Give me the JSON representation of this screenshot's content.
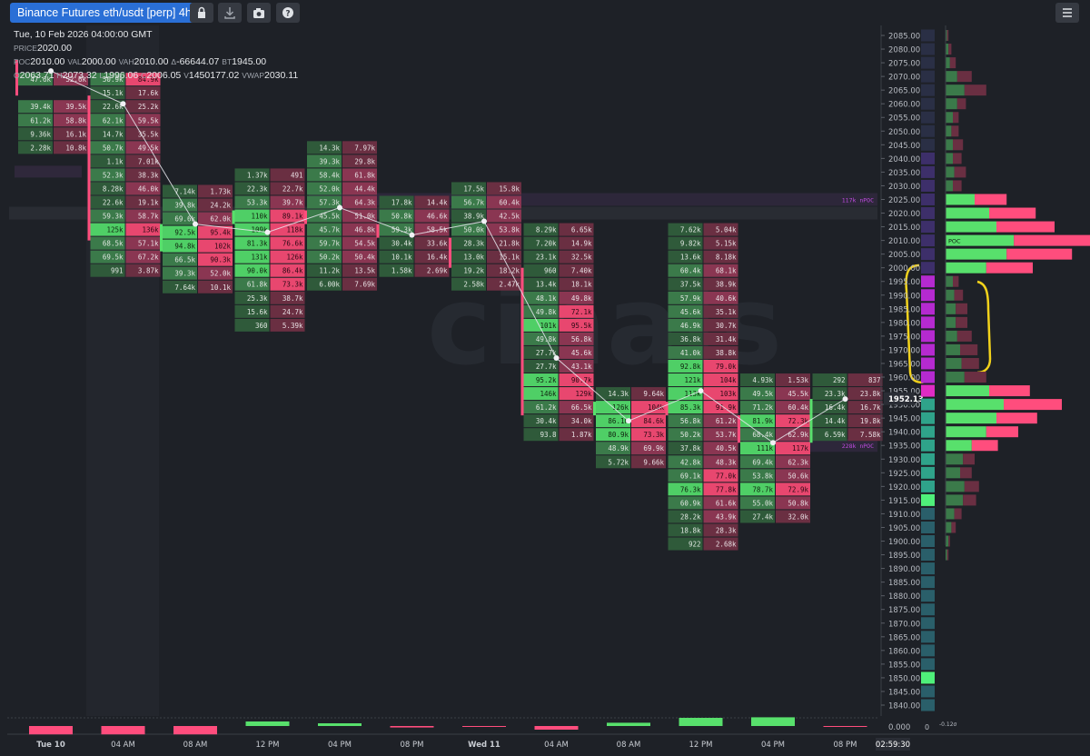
{
  "toolbar": {
    "title": "Binance Futures eth/usdt [perp] 4h",
    "icons": [
      "lock-icon",
      "download-icon",
      "camera-icon",
      "help-icon",
      "menu-icon"
    ]
  },
  "legend": {
    "datetime": "Tue, 10 Feb 2026 04:00:00 GMT",
    "price_label": "PRICE",
    "price": "2020.00",
    "poc_label": "POC",
    "poc": "2010.00",
    "val_label": "VAL",
    "val": "2000.00",
    "vah_label": "VAH",
    "vah": "2010.00",
    "delta_label": "Δ",
    "delta": "-66644.07",
    "bt_label": "BT",
    "bt": "1945.00",
    "o_label": "O",
    "o": "2063.71",
    "h_label": "H",
    "h": "2073.32",
    "l_label": "L",
    "l": "1996.06",
    "c_label": "C",
    "c": "2006.05",
    "v_label": "V",
    "v": "1450177.02",
    "vwap_label": "VWAP",
    "vwap": "2030.11"
  },
  "colors": {
    "background": "#1e2127",
    "buy": "#58e06c",
    "sell": "#ff4d7d",
    "buy_cell_dark": "#2f5a3a",
    "sell_cell_dark": "#6a2f42",
    "npoc": "#c04be0",
    "annotation": "#f2d21b"
  },
  "price_axis": {
    "current_price": "1952.13",
    "volume_zero": "0.000",
    "profile_tick": "0",
    "profile_scale": "-0.12σ"
  },
  "time_axis": {
    "current_time": "02:59:30"
  },
  "npoc_labels": [
    {
      "text": "117k nPOC",
      "price": 2025
    },
    {
      "text": "228k nPOC",
      "price": 1935
    }
  ],
  "chart_data": {
    "type": "footprint",
    "title": "Binance Futures eth/usdt [perp] 4h",
    "price_ticks": [
      2085,
      2080,
      2075,
      2070,
      2065,
      2060,
      2055,
      2050,
      2045,
      2040,
      2035,
      2030,
      2025,
      2020,
      2015,
      2010,
      2005,
      2000,
      1995,
      1990,
      1985,
      1980,
      1975,
      1970,
      1965,
      1960,
      1955,
      1950,
      1945,
      1940,
      1935,
      1930,
      1925,
      1920,
      1915,
      1910,
      1905,
      1900,
      1895,
      1890,
      1885,
      1880,
      1875,
      1870,
      1865,
      1860,
      1855,
      1850,
      1845,
      1840
    ],
    "x_labels": [
      "Tue 10",
      "04 AM",
      "08 AM",
      "12 PM",
      "04 PM",
      "08 PM",
      "Wed 11",
      "04 AM",
      "08 AM",
      "12 PM",
      "04 PM",
      "08 PM"
    ],
    "bars": [
      {
        "label": "Tue 10 00:00",
        "poc": 2075,
        "vwap": 2072,
        "cells": [
          [
            "47.6k",
            "52.6k"
          ],
          [
            "",
            ""
          ],
          [
            "39.4k",
            "39.5k"
          ],
          [
            "61.2k",
            "58.8k"
          ],
          [
            "9.36k",
            "16.1k"
          ],
          [
            "2.28k",
            "10.8k"
          ]
        ],
        "top": 2069,
        "open": 2076,
        "close": 2063
      },
      {
        "label": "04 AM",
        "poc": 2015,
        "vwap": 2060,
        "top": 2069,
        "cells": [
          [
            "50.9k",
            "84.9k"
          ],
          [
            "15.1k",
            "17.6k"
          ],
          [
            "22.6k",
            "25.2k"
          ],
          [
            "62.1k",
            "59.5k"
          ],
          [
            "14.7k",
            "35.5k"
          ],
          [
            "50.7k",
            "49.5k"
          ],
          [
            "1.1k",
            "7.01k"
          ],
          [
            "52.3k",
            "38.3k"
          ],
          [
            "8.28k",
            "46.0k"
          ],
          [
            "22.6k",
            "19.1k"
          ],
          [
            "59.3k",
            "58.7k"
          ],
          [
            "125k",
            "136k"
          ],
          [
            "68.5k",
            "57.1k"
          ],
          [
            "69.5k",
            "67.2k"
          ],
          [
            "991",
            "3.87k"
          ]
        ],
        "open": 2063,
        "close": 2010
      },
      {
        "label": "08 AM",
        "poc": 2015,
        "vwap": 2016,
        "top": 2028,
        "cells": [
          [
            "7.14k",
            "1.73k"
          ],
          [
            "39.8k",
            "24.2k"
          ],
          [
            "69.6k",
            "62.0k"
          ],
          [
            "92.5k",
            "95.4k"
          ],
          [
            "94.8k",
            "102k"
          ],
          [
            "66.5k",
            "90.3k"
          ],
          [
            "39.3k",
            "52.0k"
          ],
          [
            "7.64k",
            "10.1k"
          ]
        ],
        "open": 2006,
        "close": 2016
      },
      {
        "label": "12 PM",
        "poc": 2010,
        "vwap": 2013,
        "top": 2034,
        "cells": [
          [
            "1.37k",
            "491"
          ],
          [
            "22.3k",
            "22.7k"
          ],
          [
            "53.3k",
            "39.7k"
          ],
          [
            "110k",
            "89.1k"
          ],
          [
            "109k",
            "118k"
          ],
          [
            "81.3k",
            "76.6k"
          ],
          [
            "131k",
            "126k"
          ],
          [
            "90.0k",
            "86.4k"
          ],
          [
            "61.8k",
            "73.3k"
          ],
          [
            "25.3k",
            "38.7k"
          ],
          [
            "15.6k",
            "24.7k"
          ],
          [
            "360",
            "5.39k"
          ]
        ],
        "open": 2016,
        "close": 2021
      },
      {
        "label": "04 PM",
        "poc": 2020,
        "vwap": 2022,
        "top": 2044,
        "cells": [
          [
            "14.3k",
            "7.97k"
          ],
          [
            "39.3k",
            "29.8k"
          ],
          [
            "58.4k",
            "61.8k"
          ],
          [
            "52.0k",
            "44.4k"
          ],
          [
            "57.3k",
            "64.3k"
          ],
          [
            "45.5k",
            "51.0k"
          ],
          [
            "45.7k",
            "46.8k"
          ],
          [
            "59.7k",
            "54.5k"
          ],
          [
            "50.2k",
            "50.4k"
          ],
          [
            "11.2k",
            "13.5k"
          ],
          [
            "6.00k",
            "7.69k"
          ]
        ],
        "open": 2021,
        "close": 2016
      },
      {
        "label": "08 PM",
        "poc": 2015,
        "vwap": 2012,
        "top": 2024,
        "cells": [
          [
            "17.8k",
            "14.4k"
          ],
          [
            "50.8k",
            "46.6k"
          ],
          [
            "59.3k",
            "58.5k"
          ],
          [
            "30.4k",
            "33.6k"
          ],
          [
            "10.1k",
            "16.4k"
          ],
          [
            "1.58k",
            "2.69k"
          ]
        ],
        "open": 2016,
        "close": 2011
      },
      {
        "label": "Wed 11 00:00",
        "poc": 2025,
        "vwap": 2017,
        "top": 2029,
        "cells": [
          [
            "17.5k",
            "15.8k"
          ],
          [
            "56.7k",
            "60.4k"
          ],
          [
            "38.9k",
            "42.5k"
          ],
          [
            "50.0k",
            "53.8k"
          ],
          [
            "28.3k",
            "21.8k"
          ],
          [
            "13.0k",
            "15.1k"
          ],
          [
            "19.2k",
            "18.2k"
          ],
          [
            "2.58k",
            "2.47k"
          ]
        ],
        "open": 2011,
        "close": 2000
      },
      {
        "label": "04 AM",
        "poc": 1950,
        "vwap": 1967,
        "top": 2014,
        "cells": [
          [
            "8.29k",
            "6.65k"
          ],
          [
            "7.20k",
            "14.9k"
          ],
          [
            "23.1k",
            "32.5k"
          ],
          [
            "960",
            "7.40k"
          ],
          [
            "13.4k",
            "18.1k"
          ],
          [
            "48.1k",
            "49.8k"
          ],
          [
            "49.8k",
            "72.1k"
          ],
          [
            "101k",
            "95.5k"
          ],
          [
            "49.8k",
            "56.8k"
          ],
          [
            "27.7k",
            "45.6k"
          ],
          [
            "27.7k",
            "43.1k"
          ],
          [
            "95.2k",
            "90.7k"
          ],
          [
            "146k",
            "129k"
          ],
          [
            "61.2k",
            "66.5k"
          ],
          [
            "30.4k",
            "34.0k"
          ],
          [
            "93.8",
            "1.87k"
          ]
        ],
        "open": 2000,
        "close": 1946
      },
      {
        "label": "08 AM",
        "poc": 1950,
        "vwap": 1944,
        "top": 1954,
        "cells": [
          [
            "14.3k",
            "9.64k"
          ],
          [
            "126k",
            "104k"
          ],
          [
            "86.1k",
            "84.6k"
          ],
          [
            "80.9k",
            "73.3k"
          ],
          [
            "48.9k",
            "69.9k"
          ],
          [
            "5.72k",
            "9.66k"
          ]
        ],
        "open": 1946,
        "close": 1951
      },
      {
        "label": "12 PM",
        "poc": 1960,
        "vwap": 1955,
        "top": 2014,
        "cells": [
          [
            "7.62k",
            "5.04k"
          ],
          [
            "9.82k",
            "5.15k"
          ],
          [
            "13.6k",
            "8.18k"
          ],
          [
            "60.4k",
            "68.1k"
          ],
          [
            "37.5k",
            "38.9k"
          ],
          [
            "57.9k",
            "40.6k"
          ],
          [
            "45.6k",
            "35.1k"
          ],
          [
            "46.9k",
            "30.7k"
          ],
          [
            "36.8k",
            "31.4k"
          ],
          [
            "41.0k",
            "38.8k"
          ],
          [
            "92.8k",
            "79.0k"
          ],
          [
            "121k",
            "104k"
          ],
          [
            "113k",
            "103k"
          ],
          [
            "85.3k",
            "91.9k"
          ],
          [
            "56.8k",
            "61.2k"
          ],
          [
            "50.2k",
            "53.7k"
          ],
          [
            "37.8k",
            "40.5k"
          ],
          [
            "42.8k",
            "48.3k"
          ],
          [
            "69.1k",
            "77.0k"
          ],
          [
            "76.3k",
            "77.8k"
          ],
          [
            "60.9k",
            "61.6k"
          ],
          [
            "28.2k",
            "43.9k"
          ],
          [
            "18.8k",
            "28.3k"
          ],
          [
            "922",
            "2.68k"
          ]
        ],
        "open": 1951,
        "close": 1946
      },
      {
        "label": "04 PM",
        "poc": 1935,
        "vwap": 1936,
        "top": 1959,
        "cells": [
          [
            "4.93k",
            "1.53k"
          ],
          [
            "49.5k",
            "45.5k"
          ],
          [
            "71.2k",
            "60.4k"
          ],
          [
            "81.9k",
            "72.3k"
          ],
          [
            "68.4k",
            "62.9k"
          ],
          [
            "111k",
            "117k"
          ],
          [
            "69.4k",
            "62.3k"
          ],
          [
            "53.8k",
            "50.6k"
          ],
          [
            "78.7k",
            "72.9k"
          ],
          [
            "55.0k",
            "50.8k"
          ],
          [
            "27.4k",
            "32.0k"
          ]
        ],
        "open": 1946,
        "close": 1936
      },
      {
        "label": "08 PM",
        "poc": 1955,
        "vwap": 1952,
        "top": 1959,
        "cells": [
          [
            "292",
            "837"
          ],
          [
            "23.3k",
            "23.8k"
          ],
          [
            "16.4k",
            "16.7k"
          ],
          [
            "14.4k",
            "19.8k"
          ],
          [
            "6.59k",
            "7.58k"
          ]
        ],
        "open": 1936,
        "close": 1952
      }
    ],
    "volume_profile": [
      [
        2085,
        1,
        1
      ],
      [
        2080,
        2,
        2
      ],
      [
        2075,
        3,
        4
      ],
      [
        2070,
        8,
        10
      ],
      [
        2065,
        13,
        15
      ],
      [
        2060,
        8,
        6
      ],
      [
        2055,
        5,
        4
      ],
      [
        2050,
        4,
        5
      ],
      [
        2045,
        5,
        7
      ],
      [
        2040,
        5,
        6
      ],
      [
        2035,
        6,
        8
      ],
      [
        2030,
        5,
        6
      ],
      [
        2025,
        20,
        22
      ],
      [
        2020,
        30,
        32
      ],
      [
        2015,
        35,
        40
      ],
      [
        2010,
        47,
        55
      ],
      [
        2005,
        42,
        45
      ],
      [
        2000,
        28,
        32
      ],
      [
        1995,
        5,
        4
      ],
      [
        1990,
        6,
        6
      ],
      [
        1985,
        7,
        8
      ],
      [
        1980,
        7,
        8
      ],
      [
        1975,
        8,
        10
      ],
      [
        1970,
        10,
        12
      ],
      [
        1965,
        11,
        12
      ],
      [
        1960,
        13,
        15
      ],
      [
        1955,
        30,
        28
      ],
      [
        1950,
        40,
        40
      ],
      [
        1945,
        35,
        28
      ],
      [
        1940,
        28,
        22
      ],
      [
        1935,
        18,
        18
      ],
      [
        1930,
        12,
        8
      ],
      [
        1925,
        10,
        8
      ],
      [
        1920,
        13,
        10
      ],
      [
        1915,
        12,
        9
      ],
      [
        1910,
        6,
        5
      ],
      [
        1905,
        4,
        3
      ],
      [
        1900,
        2,
        1
      ],
      [
        1895,
        1,
        1
      ]
    ],
    "volume_delta": [
      -46,
      -46,
      -46,
      25,
      15,
      -8,
      -5,
      -20,
      18,
      45,
      48,
      -3
    ],
    "ylim": [
      1838,
      2090
    ]
  }
}
